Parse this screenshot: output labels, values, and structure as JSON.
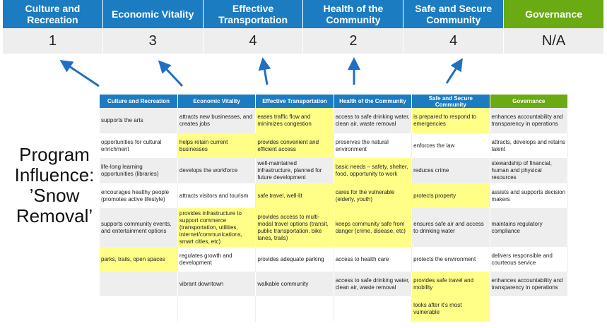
{
  "summary": {
    "categories": [
      "Culture and Recreation",
      "Economic Vitality",
      "Effective Transportation",
      "Health of the Community",
      "Safe and Secure Community",
      "Governance"
    ],
    "scores": [
      "1",
      "3",
      "4",
      "2",
      "4",
      "N/A"
    ]
  },
  "side_label": "Program Influence: ’Snow Removal’",
  "colors": {
    "header_blue": "#1c7cc2",
    "governance_green": "#6aaa12",
    "highlight": "#ffff88",
    "arrow": "#1f6fc2"
  },
  "table": {
    "headers": [
      "Culture and Recreation",
      "Economic Vitality",
      "Effective Transportation",
      "Health of the Community",
      "Safe and Secure Community",
      "Governance"
    ],
    "rows": [
      [
        {
          "t": "supports the arts"
        },
        {
          "t": "attracts new businesses, and creates jobs"
        },
        {
          "t": "eases traffic flow and minimizes congestion",
          "hl": true
        },
        {
          "t": "access to safe drinking water, clean air, waste removal"
        },
        {
          "t": "is prepared to respond to emergencies",
          "hl": true
        },
        {
          "t": "enhances accountability and transparency in operations"
        }
      ],
      [
        {
          "t": "opportunities for cultural enrichment"
        },
        {
          "t": "helps retain current businesses",
          "hl": true
        },
        {
          "t": "provides convenient and efficient access",
          "hl": true
        },
        {
          "t": "preserves the natural environment"
        },
        {
          "t": "enforces the law"
        },
        {
          "t": "attracts, develops and retains talent"
        }
      ],
      [
        {
          "t": "life-long learning opportunities (libraries)"
        },
        {
          "t": "develops the workforce"
        },
        {
          "t": "well-maintained infrastructure, planned for future development"
        },
        {
          "t": "basic needs – safety, shelter, food, opportunity to work",
          "hl": true
        },
        {
          "t": "reduces crime"
        },
        {
          "t": "stewardship of financial, human and physical resources"
        }
      ],
      [
        {
          "t": "encourages healthy people (promotes active lifestyle)"
        },
        {
          "t": "attracts visitors and tourism"
        },
        {
          "t": "safe travel, well-lit",
          "hl": true
        },
        {
          "t": "cares for the vulnerable (elderly, youth)",
          "hl": true
        },
        {
          "t": "protects property",
          "hl": true
        },
        {
          "t": "assists and supports decision makers"
        }
      ],
      [
        {
          "t": "supports community events, and entertainment options"
        },
        {
          "t": "provides infrastructure to support commerce (transportation, utilities, internet/communications, smart cities, etc)",
          "hl": true
        },
        {
          "t": "provides access to multi-modal travel options (transit, public transportation, bike lanes, trails)",
          "hl": true
        },
        {
          "t": "keeps community safe from danger (crime, disease, etc)",
          "hl": true
        },
        {
          "t": "ensures safe air and access to drinking water"
        },
        {
          "t": "maintains regulatory compliance"
        }
      ],
      [
        {
          "t": "parks, trails, open spaces",
          "hl": true
        },
        {
          "t": "regulates growth and development"
        },
        {
          "t": "provides adequate parking"
        },
        {
          "t": "access to health care"
        },
        {
          "t": "protects the environment"
        },
        {
          "t": "delivers responsible and courteous service"
        }
      ],
      [
        {
          "t": ""
        },
        {
          "t": "vibrant downtown"
        },
        {
          "t": "walkable community"
        },
        {
          "t": "access to safe drinking water, clean air, waste removal"
        },
        {
          "t": "provides safe travel and mobility",
          "hl": true
        },
        {
          "t": "enhances accountability and transparency in operations"
        }
      ],
      [
        {
          "t": ""
        },
        {
          "t": ""
        },
        {
          "t": ""
        },
        {
          "t": ""
        },
        {
          "t": "looks after it’s most vulnerable",
          "hl": true
        },
        {
          "t": ""
        }
      ]
    ]
  }
}
